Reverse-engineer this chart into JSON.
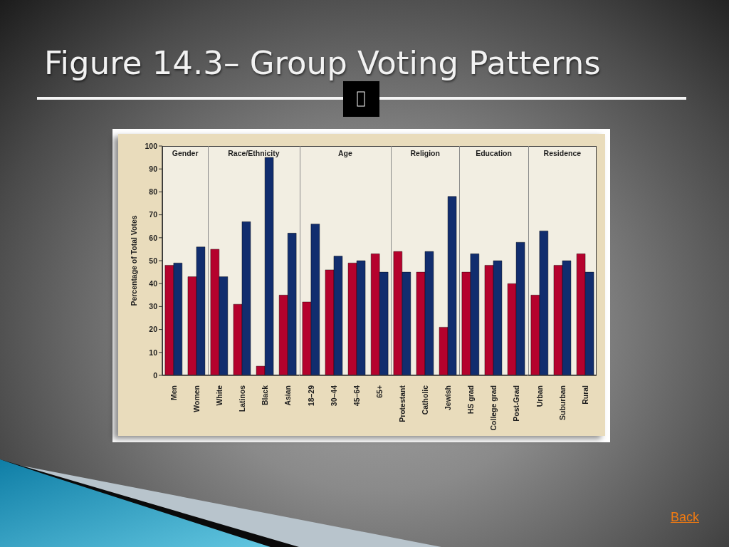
{
  "chart_data": [
    {
      "type": "other",
      "title": "Figure 14.3– Group Voting Patterns"
    },
    {
      "type": "bar",
      "title": "Gender",
      "ylabel": "Percentage of Total Votes",
      "categories": [
        "Men",
        "Women"
      ],
      "series": [
        {
          "color": "#b5022d",
          "values": [
            48,
            43
          ]
        },
        {
          "color": "#112d6e",
          "values": [
            49,
            56
          ]
        }
      ],
      "ylim": [
        0,
        100
      ],
      "yticks": [
        0,
        10,
        20,
        30,
        40,
        50,
        60,
        70,
        80,
        90,
        100
      ]
    },
    {
      "type": "bar",
      "title": "Race/Ethnicity",
      "categories": [
        "White",
        "Latinos",
        "Black",
        "Asian"
      ],
      "series": [
        {
          "color": "#b5022d",
          "values": [
            55,
            31,
            4,
            35
          ]
        },
        {
          "color": "#112d6e",
          "values": [
            43,
            67,
            95,
            62
          ]
        }
      ],
      "ylim": [
        0,
        100
      ],
      "tick_labels": "x"
    },
    {
      "type": "bar",
      "title": "Age",
      "categories": [
        "18–29",
        "30–44",
        "45–64",
        "65+"
      ],
      "series": [
        {
          "color": "#b5022d",
          "values": [
            32,
            46,
            49,
            53
          ]
        },
        {
          "color": "#112d6e",
          "values": [
            66,
            52,
            50,
            45
          ]
        }
      ],
      "ylim": [
        0,
        100
      ],
      "tick_labels": "x"
    },
    {
      "type": "bar",
      "title": "Religion",
      "categories": [
        "Protestant",
        "Catholic",
        "Jewish"
      ],
      "series": [
        {
          "color": "#b5022d",
          "values": [
            54,
            45,
            21
          ]
        },
        {
          "color": "#112d6e",
          "values": [
            45,
            54,
            78
          ]
        }
      ],
      "ylim": [
        0,
        100
      ],
      "tick_labels": "x"
    },
    {
      "type": "bar",
      "title": "Education",
      "categories": [
        "HS grad",
        "College grad",
        "Post-Grad"
      ],
      "series": [
        {
          "color": "#b5022d",
          "values": [
            45,
            48,
            40
          ]
        },
        {
          "color": "#112d6e",
          "values": [
            53,
            50,
            58
          ]
        }
      ],
      "ylim": [
        0,
        100
      ],
      "tick_labels": "x"
    },
    {
      "type": "bar",
      "title": "Residence",
      "categories": [
        "Urban",
        "Suburban",
        "Rural"
      ],
      "series": [
        {
          "color": "#b5022d",
          "values": [
            35,
            48,
            53
          ]
        },
        {
          "color": "#112d6e",
          "values": [
            63,
            50,
            45
          ]
        }
      ],
      "ylim": [
        0,
        100
      ],
      "tick_labels": "x"
    },
    {
      "type": "other",
      "annotations": [
        "Back"
      ]
    }
  ]
}
